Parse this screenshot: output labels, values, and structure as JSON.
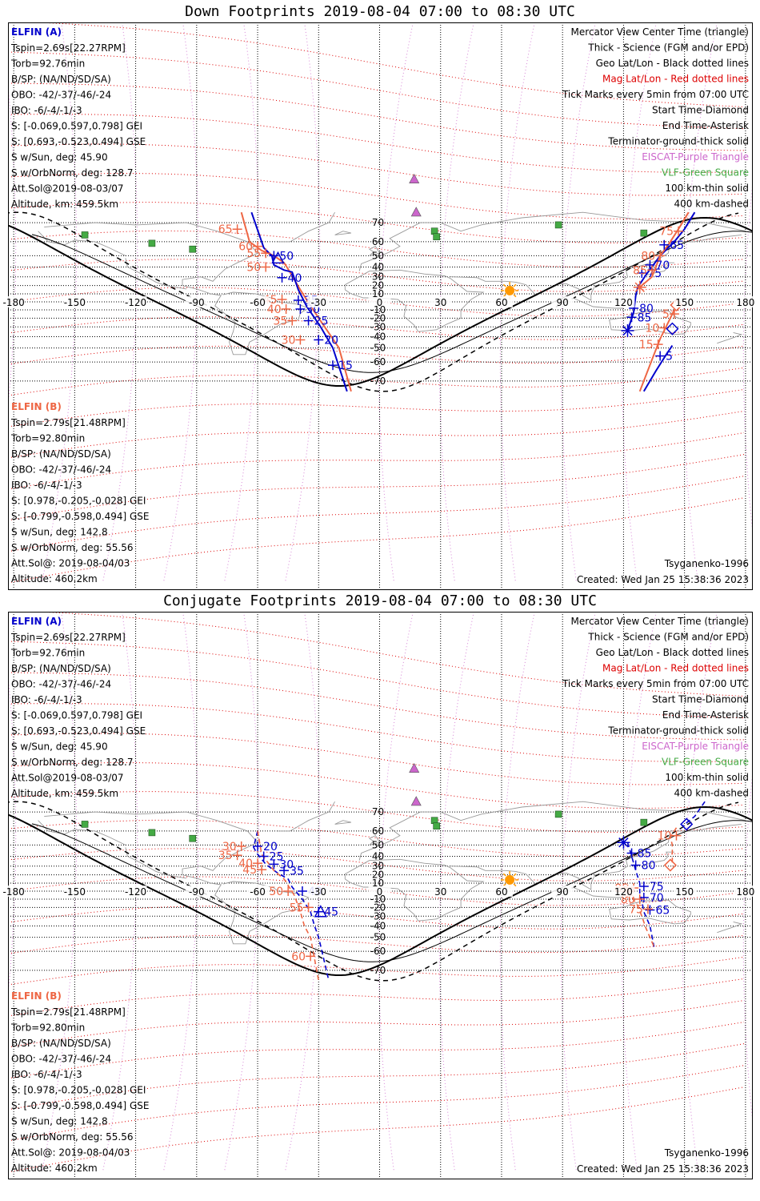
{
  "colors": {
    "sat_a": "#0000cc",
    "sat_b": "#ee6644",
    "geo_grid": "#000000",
    "mag_grid": "#dd0000",
    "magenta": "#cc66cc",
    "vlf": "#44aa44",
    "sun": "#ff9900",
    "coast": "#999999"
  },
  "lon_ticks": [
    "-180",
    "-150",
    "-120",
    "-90",
    "-60",
    "-30",
    "0",
    "30",
    "60",
    "90",
    "120",
    "150",
    "180"
  ],
  "lat_ticks": [
    "70",
    "60",
    "50",
    "40",
    "30",
    "20",
    "10",
    "-10",
    "-20",
    "-30",
    "-40",
    "-50",
    "-60",
    "-70"
  ],
  "legend": [
    {
      "text": "Mercator View Center Time (triangle)",
      "color": "#000000"
    },
    {
      "text": "Thick - Science (FGM and/or EPD)",
      "color": "#000000"
    },
    {
      "text": "Geo Lat/Lon - Black dotted lines",
      "color": "#000000"
    },
    {
      "text": "Mag Lat/Lon - Red dotted lines",
      "color": "#dd0000"
    },
    {
      "text": "Tick Marks every 5min from 07:00 UTC",
      "color": "#000000"
    },
    {
      "text": "Start Time-Diamond",
      "color": "#000000"
    },
    {
      "text": "End Time-Asterisk",
      "color": "#000000"
    },
    {
      "text": "Terminator-ground-thick solid",
      "color": "#000000"
    },
    {
      "text": "EISCAT-Purple Triangle",
      "color": "#cc66cc"
    },
    {
      "text": "VLF-Green Square",
      "color": "#44aa44"
    },
    {
      "text": "100 km-thin solid",
      "color": "#000000"
    },
    {
      "text": "400 km-dashed",
      "color": "#000000"
    }
  ],
  "elfin_a": {
    "name": "ELFIN (A)",
    "lines": [
      "Tspin=2.69s[22.27RPM]",
      "Torb=92.76min",
      "B/SP: (NA/ND/SD/SA)",
      "OBO: -42/-37/-46/-24",
      "IBO: -6/-4/-1/-3",
      "S: [-0.069,0.597,0.798] GEI",
      "S: [0.693,-0.523,0.494] GSE",
      "S w/Sun, deg: 45.90",
      "S w/OrbNorm, deg: 128.7",
      "Att.Sol@2019-08-03/07",
      "Altitude, km: 459.5km"
    ]
  },
  "elfin_b": {
    "name": "ELFIN (B)",
    "lines": [
      "Tspin=2.79s[21.48RPM]",
      "Torb=92.80min",
      "B/SP: (NA/ND/SD/SA)",
      "OBO: -42/-37/-46/-24",
      "IBO: -6/-4/-1/-3",
      "S: [0.978,-0.205,-0.028] GEI",
      "S: [-0.799,-0.598,0.494] GSE",
      "S w/Sun, deg: 142.8",
      "S w/OrbNorm, deg: 55.56",
      "Att.Sol@: 2019-08-04/03",
      "Altitude: 460.2km"
    ]
  },
  "model": "Tsyganenko-1996",
  "created": "Created: Wed Jan 25 15:38:36 2023",
  "panels": [
    {
      "title": "Down Footprints 2019-08-04 07:00 to 08:30 UTC",
      "tracks": [
        {
          "sat": "B",
          "style": "solid",
          "points": [
            [
              -68,
              74
            ],
            [
              -64,
              60
            ],
            [
              -58,
              54
            ],
            [
              -52,
              50
            ],
            [
              -47,
              44
            ],
            [
              -45,
              38
            ],
            [
              -39,
              15
            ],
            [
              -34,
              -5
            ],
            [
              -27,
              -30
            ],
            [
              -20,
              -50
            ],
            [
              -14,
              -74
            ]
          ]
        },
        {
          "sat": "A",
          "style": "solid",
          "points": [
            [
              -63,
              74
            ],
            [
              -58,
              60
            ],
            [
              -57,
              56
            ],
            [
              -53,
              50
            ],
            [
              -52,
              42
            ],
            [
              -47,
              37
            ],
            [
              -43,
              35
            ],
            [
              -40,
              15
            ],
            [
              -36,
              -5
            ],
            [
              -29,
              -30
            ],
            [
              -23,
              -50
            ],
            [
              -16,
              -74
            ]
          ]
        },
        {
          "sat": "A",
          "style": "solid",
          "points": [
            [
              155,
              74
            ],
            [
              150,
              67
            ],
            [
              145,
              60
            ],
            [
              138,
              50
            ],
            [
              131,
              32
            ],
            [
              127,
              18
            ],
            [
              126,
              8
            ],
            [
              125,
              -13
            ],
            [
              122,
              -34
            ]
          ]
        },
        {
          "sat": "B",
          "style": "solid",
          "points": [
            [
              152,
              74
            ],
            [
              147,
              67
            ],
            [
              143,
              60
            ],
            [
              138,
              50
            ],
            [
              134,
              30
            ],
            [
              128,
              18
            ]
          ]
        },
        {
          "sat": "B",
          "style": "solid",
          "points": [
            [
              145,
              -10
            ],
            [
              142,
              -25
            ],
            [
              138,
              -42
            ],
            [
              135,
              -55
            ],
            [
              128,
              -74
            ]
          ]
        },
        {
          "sat": "A",
          "style": "solid",
          "points": [
            [
              144,
              -48
            ],
            [
              141,
              -55
            ],
            [
              136,
              -65
            ],
            [
              130,
              -74
            ]
          ]
        }
      ],
      "ticks": [
        {
          "sat": "A",
          "label": "50",
          "lon": -52,
          "lat": 50
        },
        {
          "sat": "A",
          "label": "40",
          "lon": -48,
          "lat": 29
        },
        {
          "sat": "A",
          "label": "35",
          "lon": -40,
          "lat": 2
        },
        {
          "sat": "A",
          "label": "30",
          "lon": -39,
          "lat": -9
        },
        {
          "sat": "A",
          "label": "25",
          "lon": -35,
          "lat": -23
        },
        {
          "sat": "A",
          "label": "20",
          "lon": -30,
          "lat": -43
        },
        {
          "sat": "A",
          "label": "15",
          "lon": -23,
          "lat": -62
        },
        {
          "sat": "A",
          "label": "80",
          "lon": 125,
          "lat": -8
        },
        {
          "sat": "A",
          "label": "85",
          "lon": 124,
          "lat": -19
        },
        {
          "sat": "A",
          "label": "75",
          "lon": 129,
          "lat": 34
        },
        {
          "sat": "A",
          "label": "70",
          "lon": 133,
          "lat": 42
        },
        {
          "sat": "A",
          "label": "65",
          "lon": 140,
          "lat": 58
        },
        {
          "sat": "A",
          "label": "5",
          "lon": 138,
          "lat": -56
        },
        {
          "sat": "B",
          "label": "65",
          "lon": -70,
          "lat": 67
        },
        {
          "sat": "B",
          "label": "60",
          "lon": -60,
          "lat": 57
        },
        {
          "sat": "B",
          "label": "55",
          "lon": -56,
          "lat": 52
        },
        {
          "sat": "B",
          "label": "50",
          "lon": -56,
          "lat": 40
        },
        {
          "sat": "B",
          "label": "45",
          "lon": -48,
          "lat": 3
        },
        {
          "sat": "B",
          "label": "40",
          "lon": -46,
          "lat": -9
        },
        {
          "sat": "B",
          "label": "35",
          "lon": -43,
          "lat": -23
        },
        {
          "sat": "B",
          "label": "30",
          "lon": -39,
          "lat": -43
        },
        {
          "sat": "B",
          "label": "75",
          "lon": 147,
          "lat": 66
        },
        {
          "sat": "B",
          "label": "80",
          "lon": 138,
          "lat": 50
        },
        {
          "sat": "B",
          "label": "85",
          "lon": 134,
          "lat": 37
        },
        {
          "sat": "B",
          "label": "5",
          "lon": 145,
          "lat": -15
        },
        {
          "sat": "B",
          "label": "10",
          "lon": 140,
          "lat": -31
        },
        {
          "sat": "B",
          "label": "15",
          "lon": 137,
          "lat": -47
        }
      ],
      "triangles": [
        {
          "sat": "A",
          "lon": -50,
          "lat": 48
        }
      ],
      "diamonds": [
        {
          "sat": "B",
          "lon": 146,
          "lat": -4
        },
        {
          "sat": "A",
          "lon": 144,
          "lat": -32
        }
      ],
      "asterisks": [
        {
          "sat": "A",
          "lon": 122,
          "lat": -34
        },
        {
          "sat": "B",
          "lon": 128,
          "lat": 18
        }
      ]
    },
    {
      "title": "Conjugate Footprints 2019-08-04 07:00 to 08:30 UTC",
      "tracks": [
        {
          "sat": "A",
          "style": "dashed",
          "points": [
            [
              -60,
              60
            ],
            [
              -62,
              48
            ],
            [
              -60,
              42
            ],
            [
              -56,
              32
            ],
            [
              -50,
              22
            ],
            [
              -45,
              15
            ],
            [
              -43,
              5
            ],
            [
              -38,
              -10
            ],
            [
              -34,
              -25
            ],
            [
              -32,
              -40
            ],
            [
              -30,
              -50
            ],
            [
              -25,
              -74
            ]
          ]
        },
        {
          "sat": "B",
          "style": "dashed",
          "points": [
            [
              -60,
              60
            ],
            [
              -58,
              42
            ],
            [
              -52,
              25
            ],
            [
              -47,
              15
            ],
            [
              -42,
              -5
            ],
            [
              -39,
              -25
            ],
            [
              -37,
              -40
            ],
            [
              -34,
              -50
            ],
            [
              -30,
              -74
            ]
          ]
        },
        {
          "sat": "A",
          "style": "dashed",
          "points": [
            [
              122,
              52
            ],
            [
              124,
              40
            ],
            [
              126,
              25
            ],
            [
              128,
              10
            ],
            [
              128,
              -4
            ],
            [
              129,
              -12
            ],
            [
              130,
              -25
            ],
            [
              133,
              -40
            ],
            [
              135,
              -57
            ]
          ]
        },
        {
          "sat": "B",
          "style": "dashed",
          "points": [
            [
              122,
              0
            ],
            [
              127,
              -18
            ],
            [
              129,
              -30
            ],
            [
              131,
              -42
            ],
            [
              135,
              -57
            ]
          ]
        },
        {
          "sat": "B",
          "style": "dashed",
          "points": [
            [
              146,
              62
            ],
            [
              143,
              56
            ],
            [
              144,
              50
            ],
            [
              144,
              30
            ]
          ]
        },
        {
          "sat": "A",
          "style": "dashed",
          "points": [
            [
              160,
              74
            ],
            [
              155,
              68
            ],
            [
              149,
              63
            ]
          ]
        }
      ],
      "ticks": [
        {
          "sat": "A",
          "label": "20",
          "lon": -60,
          "lat": 49
        },
        {
          "sat": "A",
          "label": "25",
          "lon": -57,
          "lat": 40
        },
        {
          "sat": "A",
          "label": "30",
          "lon": -52,
          "lat": 32
        },
        {
          "sat": "A",
          "label": "35",
          "lon": -47,
          "lat": 25
        },
        {
          "sat": "A",
          "label": "40",
          "lon": -38,
          "lat": 0
        },
        {
          "sat": "A",
          "label": "45",
          "lon": -30,
          "lat": -25
        },
        {
          "sat": "A",
          "label": "85",
          "lon": 124,
          "lat": 43
        },
        {
          "sat": "A",
          "label": "80",
          "lon": 126,
          "lat": 31
        },
        {
          "sat": "A",
          "label": "75",
          "lon": 130,
          "lat": 6
        },
        {
          "sat": "A",
          "label": "70",
          "lon": 130,
          "lat": -8
        },
        {
          "sat": "A",
          "label": "65",
          "lon": 133,
          "lat": -23
        },
        {
          "sat": "B",
          "label": "30",
          "lon": -68,
          "lat": 49
        },
        {
          "sat": "B",
          "label": "35",
          "lon": -70,
          "lat": 41
        },
        {
          "sat": "B",
          "label": "40",
          "lon": -60,
          "lat": 33
        },
        {
          "sat": "B",
          "label": "45",
          "lon": -58,
          "lat": 26
        },
        {
          "sat": "B",
          "label": "50",
          "lon": -45,
          "lat": 0
        },
        {
          "sat": "B",
          "label": "55",
          "lon": -35,
          "lat": -20
        },
        {
          "sat": "B",
          "label": "60",
          "lon": -34,
          "lat": -63
        },
        {
          "sat": "B",
          "label": "85",
          "lon": 125,
          "lat": 4
        },
        {
          "sat": "B",
          "label": "80",
          "lon": 128,
          "lat": -10
        },
        {
          "sat": "B",
          "label": "75",
          "lon": 132,
          "lat": -22
        },
        {
          "sat": "B",
          "label": "10",
          "lon": 146,
          "lat": 57
        }
      ],
      "triangles": [
        {
          "sat": "A",
          "lon": -29,
          "lat": -25
        }
      ],
      "diamonds": [
        {
          "sat": "A",
          "lon": 151,
          "lat": 64
        },
        {
          "sat": "B",
          "lon": 143,
          "lat": 31
        }
      ],
      "asterisks": [
        {
          "sat": "A",
          "lon": 120,
          "lat": 52
        },
        {
          "sat": "B",
          "lon": 122,
          "lat": 0
        }
      ]
    }
  ]
}
